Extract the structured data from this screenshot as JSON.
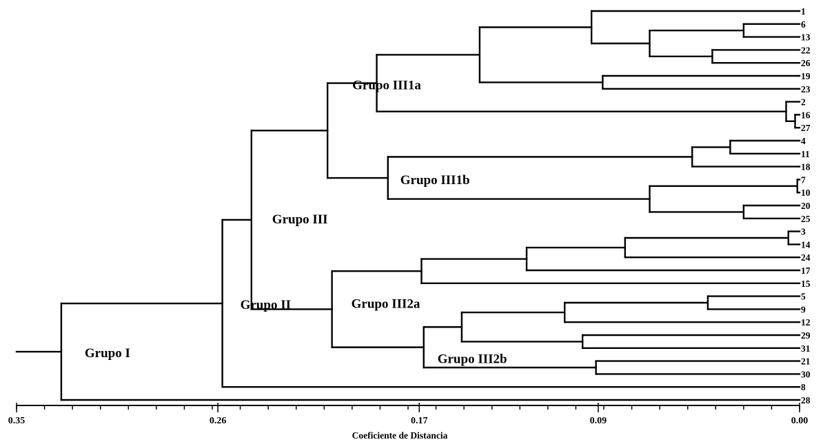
{
  "chart_data": {
    "type": "dendrogram",
    "xlabel": "Coeficiente de Distancia",
    "xlim": [
      0.35,
      0.0
    ],
    "ticks": [
      {
        "value": 0.35,
        "label": "0.35"
      },
      {
        "value": 0.26,
        "label": "0.26"
      },
      {
        "value": 0.17,
        "label": "0.17"
      },
      {
        "value": 0.09,
        "label": "0.09"
      },
      {
        "value": 0.0,
        "label": "0.00"
      }
    ],
    "minor_tick_step": 0.0125,
    "leaves": [
      "1",
      "6",
      "13",
      "22",
      "26",
      "19",
      "23",
      "2",
      "16",
      "27",
      "4",
      "11",
      "18",
      "7",
      "10",
      "20",
      "25",
      "3",
      "14",
      "24",
      "17",
      "15",
      "5",
      "9",
      "12",
      "29",
      "31",
      "21",
      "30",
      "8",
      "28"
    ],
    "merges": [
      {
        "id": "m1",
        "children": [
          "6",
          "13"
        ],
        "height": 0.025
      },
      {
        "id": "m2",
        "children": [
          "22",
          "26"
        ],
        "height": 0.039
      },
      {
        "id": "m3",
        "children": [
          "m1",
          "m2"
        ],
        "height": 0.067
      },
      {
        "id": "m4",
        "children": [
          "1",
          "m3"
        ],
        "height": 0.093
      },
      {
        "id": "m5",
        "children": [
          "19",
          "23"
        ],
        "height": 0.088
      },
      {
        "id": "m6",
        "children": [
          "m4",
          "m5"
        ],
        "height": 0.143
      },
      {
        "id": "m7",
        "children": [
          "16",
          "27"
        ],
        "height": 0.002
      },
      {
        "id": "m8",
        "children": [
          "2",
          "m7"
        ],
        "height": 0.006
      },
      {
        "id": "m9",
        "children": [
          "m6",
          "m8"
        ],
        "height": 0.189
      },
      {
        "id": "m10",
        "children": [
          "4",
          "11"
        ],
        "height": 0.031
      },
      {
        "id": "m11",
        "children": [
          "m10",
          "18"
        ],
        "height": 0.048
      },
      {
        "id": "m12",
        "children": [
          "7",
          "10"
        ],
        "height": 0.001
      },
      {
        "id": "m13",
        "children": [
          "20",
          "25"
        ],
        "height": 0.025
      },
      {
        "id": "m14",
        "children": [
          "m12",
          "m13"
        ],
        "height": 0.067
      },
      {
        "id": "m15",
        "children": [
          "m11",
          "m14"
        ],
        "height": 0.184
      },
      {
        "id": "m16",
        "children": [
          "m9",
          "m15"
        ],
        "height": 0.211
      },
      {
        "id": "m17",
        "children": [
          "3",
          "14"
        ],
        "height": 0.005
      },
      {
        "id": "m18",
        "children": [
          "m17",
          "24"
        ],
        "height": 0.078
      },
      {
        "id": "m19",
        "children": [
          "m18",
          "17"
        ],
        "height": 0.122
      },
      {
        "id": "m20",
        "children": [
          "m19",
          "15"
        ],
        "height": 0.169
      },
      {
        "id": "m21",
        "children": [
          "5",
          "9"
        ],
        "height": 0.041
      },
      {
        "id": "m22",
        "children": [
          "m21",
          "12"
        ],
        "height": 0.105
      },
      {
        "id": "m23",
        "children": [
          "29",
          "31"
        ],
        "height": 0.097
      },
      {
        "id": "m24",
        "children": [
          "m22",
          "m23"
        ],
        "height": 0.151
      },
      {
        "id": "m25",
        "children": [
          "21",
          "30"
        ],
        "height": 0.091
      },
      {
        "id": "m26",
        "children": [
          "m24",
          "m25"
        ],
        "height": 0.168
      },
      {
        "id": "m27",
        "children": [
          "m20",
          "m26"
        ],
        "height": 0.209
      },
      {
        "id": "m28",
        "children": [
          "m16",
          "m27"
        ],
        "height": 0.245
      },
      {
        "id": "m29",
        "children": [
          "m28",
          "8"
        ],
        "height": 0.258
      },
      {
        "id": "m30",
        "children": [
          "m29",
          "28"
        ],
        "height": 0.33
      }
    ],
    "root_stem_height": 0.35,
    "group_labels": [
      {
        "text": "Grupo I",
        "node": "m30"
      },
      {
        "text": "Grupo II",
        "node": "m29"
      },
      {
        "text": "Grupo III",
        "node": "m28"
      },
      {
        "text": "Grupo III1a",
        "node": "m16"
      },
      {
        "text": "Grupo III1b",
        "node": "m15"
      },
      {
        "text": "Grupo III2a",
        "node": "m27"
      },
      {
        "text": "Grupo III2b",
        "node": "m26"
      }
    ]
  }
}
